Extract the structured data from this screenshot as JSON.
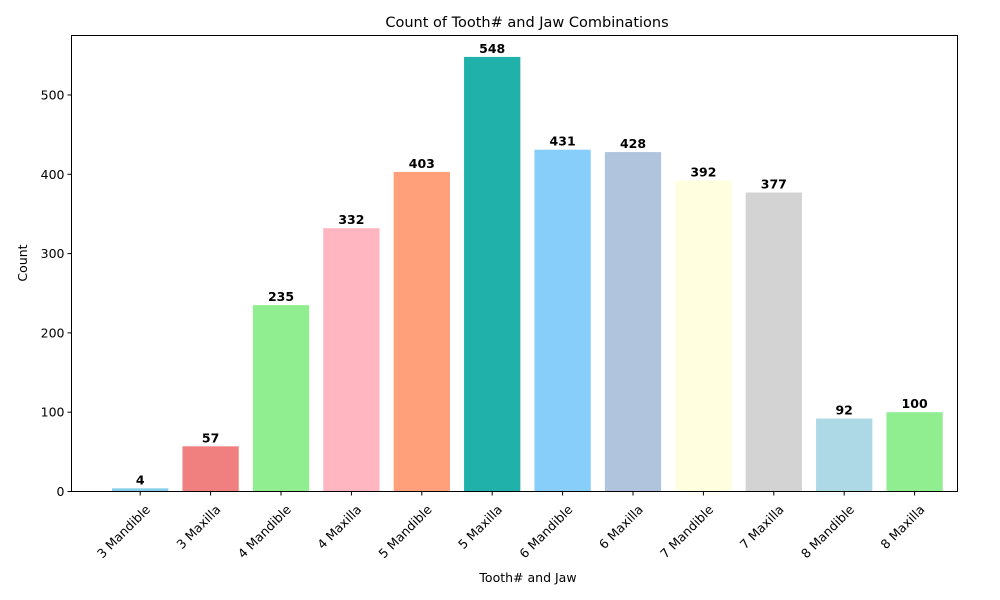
{
  "chart_data": {
    "type": "bar",
    "title": "Count of Tooth# and Jaw Combinations",
    "xlabel": "Tooth# and Jaw",
    "ylabel": "Count",
    "categories": [
      "3 Mandible",
      "3 Maxilla",
      "4 Mandible",
      "4 Maxilla",
      "5 Mandible",
      "5 Maxilla",
      "6 Mandible",
      "6 Maxilla",
      "7 Mandible",
      "7 Maxilla",
      "8 Mandible",
      "8 Maxilla"
    ],
    "values": [
      4,
      57,
      235,
      332,
      403,
      548,
      431,
      428,
      392,
      377,
      92,
      100
    ],
    "colors": [
      "#87ceeb",
      "#f08080",
      "#90ee90",
      "#ffb6c1",
      "#ffa07a",
      "#20b2aa",
      "#87cefa",
      "#b0c4de",
      "#ffffe0",
      "#d3d3d3",
      "#add8e6",
      "#90ee90"
    ],
    "ylim": [
      0,
      575
    ],
    "yticks": [
      0,
      100,
      200,
      300,
      400,
      500
    ],
    "grid": false,
    "data_labels": true
  }
}
